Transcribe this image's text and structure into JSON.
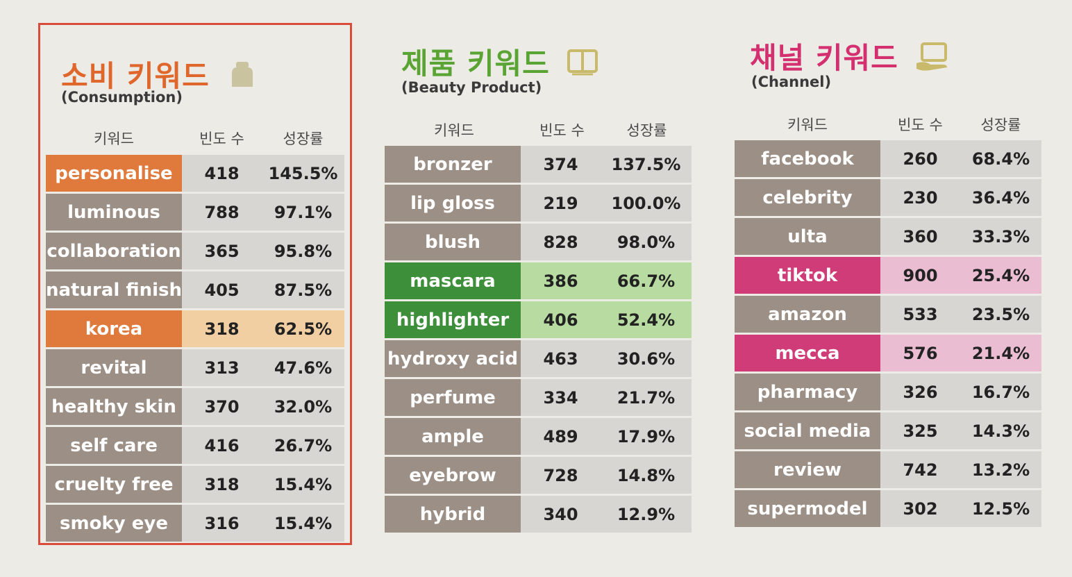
{
  "colors": {
    "consumption": "#e0672c",
    "product": "#5aa434",
    "channel": "#d4306f"
  },
  "headers": {
    "keyword": "키워드",
    "frequency": "빈도 수",
    "growth": "성장률"
  },
  "consumption": {
    "title": "소비 키워드",
    "subtitle": "(Consumption)",
    "icon": "cosmetic-jar-icon",
    "rows": [
      {
        "keyword": "personalise",
        "frequency": "418",
        "growth": "145.5%",
        "highlight": "orange"
      },
      {
        "keyword": "luminous",
        "frequency": "788",
        "growth": "97.1%"
      },
      {
        "keyword": "collaboration",
        "frequency": "365",
        "growth": "95.8%"
      },
      {
        "keyword": "natural finish",
        "frequency": "405",
        "growth": "87.5%"
      },
      {
        "keyword": "korea",
        "frequency": "318",
        "growth": "62.5%",
        "highlight": "orange-full"
      },
      {
        "keyword": "revital",
        "frequency": "313",
        "growth": "47.6%"
      },
      {
        "keyword": "healthy skin",
        "frequency": "370",
        "growth": "32.0%"
      },
      {
        "keyword": "self care",
        "frequency": "416",
        "growth": "26.7%"
      },
      {
        "keyword": "cruelty free",
        "frequency": "318",
        "growth": "15.4%"
      },
      {
        "keyword": "smoky eye",
        "frequency": "316",
        "growth": "15.4%"
      }
    ]
  },
  "product": {
    "title": "제품 키워드",
    "subtitle": "(Beauty Product)",
    "icon": "book-icon",
    "rows": [
      {
        "keyword": "bronzer",
        "frequency": "374",
        "growth": "137.5%"
      },
      {
        "keyword": "lip gloss",
        "frequency": "219",
        "growth": "100.0%"
      },
      {
        "keyword": "blush",
        "frequency": "828",
        "growth": "98.0%"
      },
      {
        "keyword": "mascara",
        "frequency": "386",
        "growth": "66.7%",
        "highlight": "green"
      },
      {
        "keyword": "highlighter",
        "frequency": "406",
        "growth": "52.4%",
        "highlight": "green"
      },
      {
        "keyword": "hydroxy acid",
        "frequency": "463",
        "growth": "30.6%"
      },
      {
        "keyword": "perfume",
        "frequency": "334",
        "growth": "21.7%"
      },
      {
        "keyword": "ample",
        "frequency": "489",
        "growth": "17.9%"
      },
      {
        "keyword": "eyebrow",
        "frequency": "728",
        "growth": "14.8%"
      },
      {
        "keyword": "hybrid",
        "frequency": "340",
        "growth": "12.9%"
      }
    ]
  },
  "channel": {
    "title": "채널 키워드",
    "subtitle": "(Channel)",
    "icon": "hand-screen-icon",
    "rows": [
      {
        "keyword": "facebook",
        "frequency": "260",
        "growth": "68.4%"
      },
      {
        "keyword": "celebrity",
        "frequency": "230",
        "growth": "36.4%"
      },
      {
        "keyword": "ulta",
        "frequency": "360",
        "growth": "33.3%"
      },
      {
        "keyword": "tiktok",
        "frequency": "900",
        "growth": "25.4%",
        "highlight": "pink"
      },
      {
        "keyword": "amazon",
        "frequency": "533",
        "growth": "23.5%"
      },
      {
        "keyword": "mecca",
        "frequency": "576",
        "growth": "21.4%",
        "highlight": "pink"
      },
      {
        "keyword": "pharmacy",
        "frequency": "326",
        "growth": "16.7%"
      },
      {
        "keyword": "social media",
        "frequency": "325",
        "growth": "14.3%"
      },
      {
        "keyword": "review",
        "frequency": "742",
        "growth": "13.2%"
      },
      {
        "keyword": "supermodel",
        "frequency": "302",
        "growth": "12.5%"
      }
    ]
  }
}
